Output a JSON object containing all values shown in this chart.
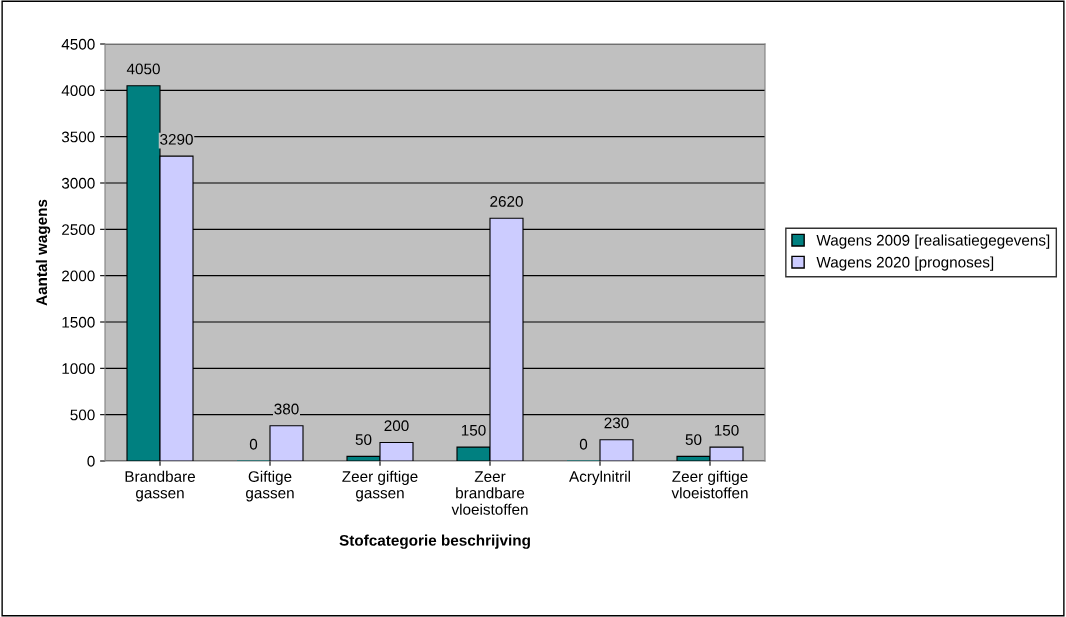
{
  "chart_data": {
    "type": "bar",
    "xlabel": "Stofcategorie beschrijving",
    "ylabel": "Aantal wagens",
    "categories": [
      "Brandbare\ngassen",
      "Giftige\ngassen",
      "Zeer giftige\ngassen",
      "Zeer\nbrandbare\nvloeistoffen",
      "Acrylnitril",
      "Zeer giftige\nvloeistoffen"
    ],
    "series": [
      {
        "name": "Wagens 2009 [realisatiegegevens]",
        "color": "#008080",
        "values": [
          4050,
          0,
          50,
          150,
          0,
          50
        ]
      },
      {
        "name": "Wagens 2020 [prognoses]",
        "color": "#ccccff",
        "values": [
          3290,
          380,
          200,
          2620,
          230,
          150
        ]
      }
    ],
    "ylim": [
      0,
      4500
    ],
    "yticks": [
      0,
      500,
      1000,
      1500,
      2000,
      2500,
      3000,
      3500,
      4000,
      4500
    ],
    "grid": "y",
    "legend": "right",
    "data_labels": true
  }
}
